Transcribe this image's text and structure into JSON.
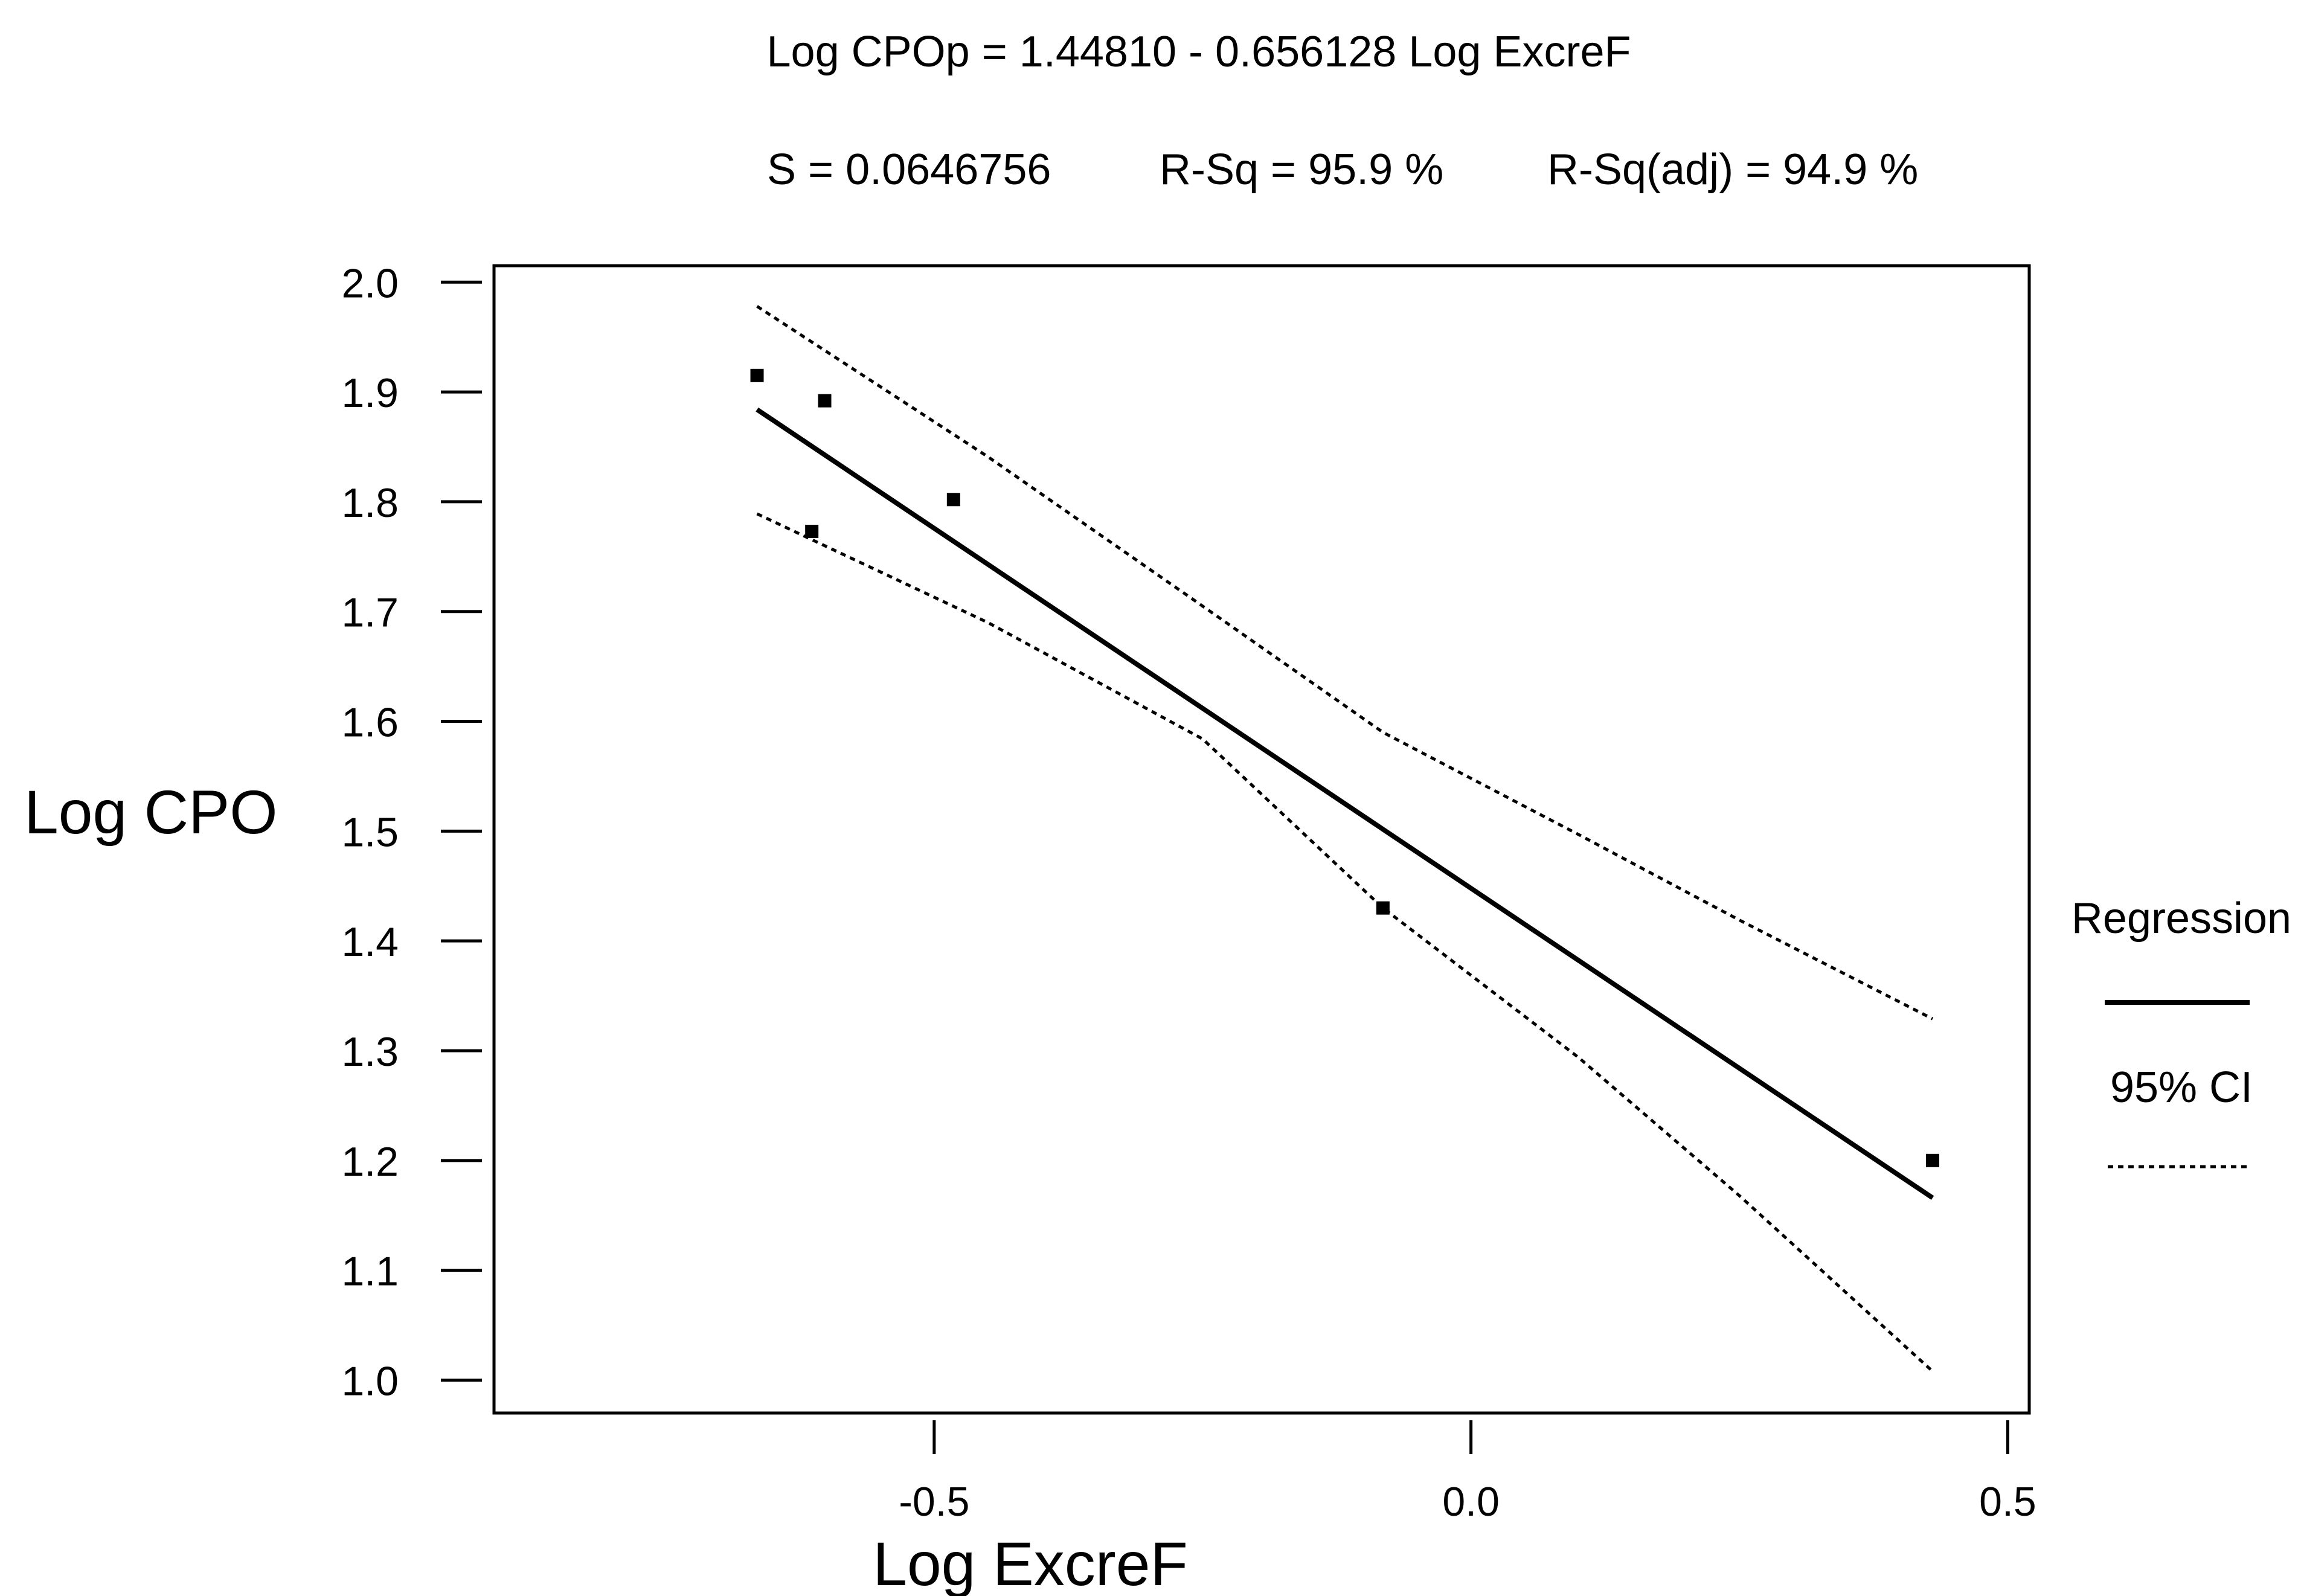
{
  "chart_data": {
    "type": "scatter",
    "title": "Log CPOp = 1.44810 - 0.656128 Log ExcreF",
    "subtitle": {
      "s": "S = 0.0646756",
      "rsq": "R-Sq = 95.9 %",
      "rsq_adj": "R-Sq(adj) = 94.9 %"
    },
    "xlabel": "Log ExcreF",
    "ylabel": "Log CPO",
    "xlim": [
      -0.91,
      0.52
    ],
    "ylim": [
      0.97,
      2.015
    ],
    "x_ticks": [
      -0.5,
      0.0,
      0.5
    ],
    "x_tick_labels": [
      "-0.5",
      "0.0",
      "0.5"
    ],
    "y_ticks": [
      1.0,
      1.1,
      1.2,
      1.3,
      1.4,
      1.5,
      1.6,
      1.7,
      1.8,
      1.9,
      2.0
    ],
    "y_tick_labels": [
      "1.0",
      "1.1",
      "1.2",
      "1.3",
      "1.4",
      "1.5",
      "1.6",
      "1.7",
      "1.8",
      "1.9",
      "2.0"
    ],
    "grid": false,
    "legend_position": "right",
    "points": [
      {
        "x": -0.665,
        "y": 1.915
      },
      {
        "x": -0.602,
        "y": 1.892
      },
      {
        "x": -0.614,
        "y": 1.773
      },
      {
        "x": -0.482,
        "y": 1.802
      },
      {
        "x": -0.082,
        "y": 1.43
      },
      {
        "x": 0.43,
        "y": 1.2
      }
    ],
    "series": [
      {
        "name": "Regression",
        "style": "solid",
        "x": [
          -0.665,
          0.43
        ],
        "y": [
          1.884,
          1.166
        ]
      },
      {
        "name": "95% CI",
        "style": "dotted",
        "x": [
          -0.665,
          -0.45,
          -0.25,
          -0.082,
          0.1,
          0.25,
          0.43
        ],
        "y": [
          1.978,
          1.841,
          1.705,
          1.59,
          1.497,
          1.419,
          1.329
        ]
      },
      {
        "name": "95% CI",
        "style": "dotted",
        "x": [
          -0.665,
          -0.45,
          -0.25,
          -0.082,
          0.1,
          0.25,
          0.43
        ],
        "y": [
          1.789,
          1.69,
          1.584,
          1.43,
          1.294,
          1.168,
          1.008
        ]
      }
    ],
    "legend": [
      {
        "label": "Regression",
        "style": "solid"
      },
      {
        "label": "95% CI",
        "style": "dotted"
      }
    ],
    "colors": {
      "ink": "#000000",
      "background": "#ffffff"
    }
  }
}
